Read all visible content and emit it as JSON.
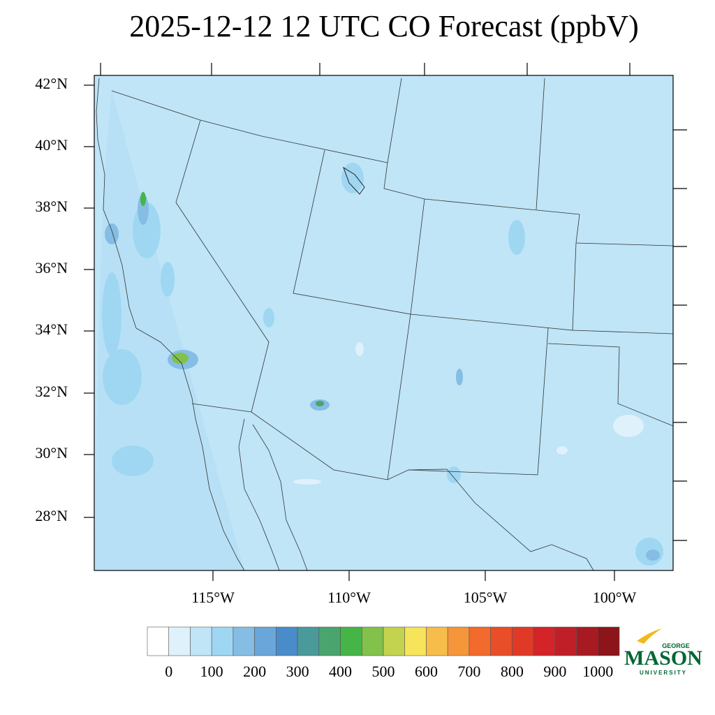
{
  "title": "2025-12-12 12 UTC CO Forecast (ppbV)",
  "map": {
    "lat_labels": [
      "42°N",
      "40°N",
      "38°N",
      "36°N",
      "34°N",
      "32°N",
      "30°N",
      "28°N"
    ],
    "lon_labels": [
      "115°W",
      "110°W",
      "105°W",
      "100°W"
    ]
  },
  "colorbar": {
    "levels": [
      0,
      50,
      100,
      150,
      200,
      250,
      300,
      350,
      400,
      450,
      500,
      550,
      600,
      650,
      700,
      750,
      800,
      850,
      900,
      950,
      1000
    ],
    "colors": [
      "#ffffff",
      "#dff1fb",
      "#bfe5f7",
      "#9fd7f2",
      "#86bde4",
      "#6aa6d9",
      "#4a8cca",
      "#4a9a9a",
      "#4aa46e",
      "#46b547",
      "#82c14a",
      "#c3d24f",
      "#f6e45a",
      "#f6bd4a",
      "#f5963a",
      "#f26a2c",
      "#e84e28",
      "#e03a26",
      "#d42329",
      "#c01f27",
      "#a81a22",
      "#8c1519"
    ],
    "ticks": [
      0,
      100,
      200,
      300,
      400,
      500,
      600,
      700,
      800,
      900,
      1000
    ]
  },
  "logo": {
    "top": "GEORGE",
    "name": "MASON",
    "bottom": "UNIVERSITY"
  }
}
